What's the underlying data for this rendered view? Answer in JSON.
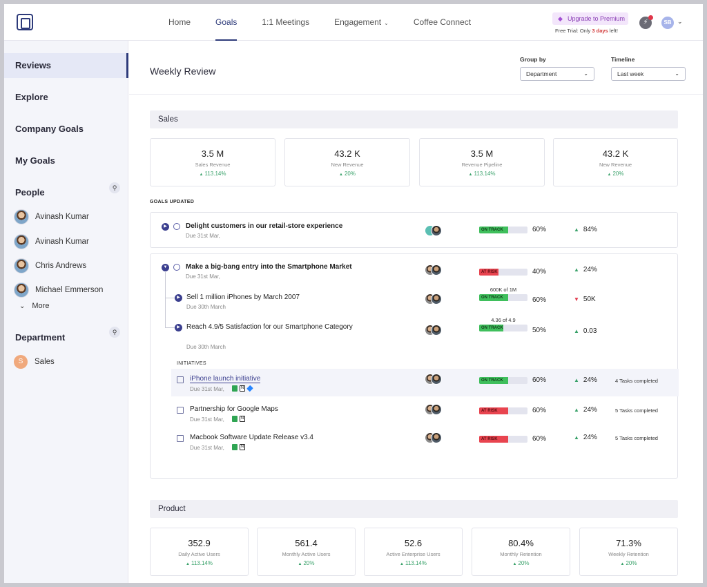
{
  "nav": {
    "links": [
      "Home",
      "Goals",
      "1:1 Meetings",
      "Engagement",
      "Coffee Connect"
    ],
    "active": "Goals",
    "upgrade_label": "Upgrade to Premium",
    "trial_prefix": "Free Trial: Only",
    "trial_days": "3 days",
    "trial_suffix": "left!",
    "user_initials": "SB"
  },
  "sidebar": {
    "items": [
      "Reviews",
      "Explore",
      "Company Goals",
      "My Goals"
    ],
    "people_heading": "People",
    "people": [
      "Avinash Kumar",
      "Avinash Kumar",
      "Chris Andrews",
      "Michael Emmerson"
    ],
    "more_label": "More",
    "department_heading": "Department",
    "departments": [
      {
        "initial": "S",
        "name": "Sales"
      }
    ]
  },
  "header": {
    "title": "Weekly Review",
    "group_by_label": "Group by",
    "group_by_value": "Department",
    "timeline_label": "Timeline",
    "timeline_value": "Last week"
  },
  "sales": {
    "title": "Sales",
    "kpis": [
      {
        "value": "3.5 M",
        "label": "Sales Revenue",
        "change": "113.14%"
      },
      {
        "value": "43.2 K",
        "label": "New Revenue",
        "change": "20%"
      },
      {
        "value": "3.5 M",
        "label": "Revenue Pipeline",
        "change": "113.14%"
      },
      {
        "value": "43.2 K",
        "label": "New Revenue",
        "change": "20%"
      }
    ],
    "goals_updated_label": "GOALS UPDATED",
    "goals": [
      {
        "title": "Delight customers in our retail-store experience",
        "due": "Due 31st Mar,",
        "status": "ON TRACK",
        "progress": 60,
        "progress_label": "60%",
        "trend": "84%"
      },
      {
        "title": "Make a big-bang entry into the Smartphone Market",
        "due": "Due 31st Mar,",
        "status": "AT RISK",
        "progress": 40,
        "progress_label": "40%",
        "trend": "24%"
      }
    ],
    "sub_goals": [
      {
        "title": "Sell 1 million iPhones by March 2007",
        "due": "Due 30th March",
        "note": "600K of 1M",
        "status": "ON TRACK",
        "progress": 60,
        "progress_label": "60%",
        "trend": "50K"
      },
      {
        "title": "Reach 4.9/5 Satisfaction for our Smartphone Category",
        "due": "Due 30th March",
        "note": "4.36 of 4.9",
        "status": "ON TRACK",
        "progress": 50,
        "progress_label": "50%",
        "trend": "0.03"
      }
    ],
    "initiatives_label": "INITIATIVES",
    "initiatives": [
      {
        "title": "iPhone launch initiative",
        "due": "Due 31st Mar,",
        "status": "ON TRACK",
        "progress": 60,
        "progress_label": "60%",
        "trend": "24%",
        "tasks": "4 Tasks completed"
      },
      {
        "title": "Partnership for Google Maps",
        "due": "Due 31st Mar,",
        "status": "AT RISK",
        "progress": 60,
        "progress_label": "60%",
        "trend": "24%",
        "tasks": "5 Tasks completed"
      },
      {
        "title": "Macbook Software Update Release v3.4",
        "due": "Due 31st Mar,",
        "status": "AT RISK",
        "progress": 60,
        "progress_label": "60%",
        "trend": "24%",
        "tasks": "5 Tasks completed"
      }
    ]
  },
  "product": {
    "title": "Product",
    "kpis": [
      {
        "value": "352.9",
        "label": "Daily Active Users",
        "change": "113.14%"
      },
      {
        "value": "561.4",
        "label": "Monthly Active Users",
        "change": "20%"
      },
      {
        "value": "52.6",
        "label": "Active Enterprise Users",
        "change": "113.14%"
      },
      {
        "value": "80.4%",
        "label": "Monthly Retention",
        "change": "20%"
      },
      {
        "value": "71.3%",
        "label": "Weekly Retention",
        "change": "20%"
      }
    ]
  },
  "colors": {
    "brand": "#2d3a7a",
    "on_track": "#3fbf5c",
    "at_risk": "#e8444f",
    "trend_up": "#38a169",
    "trend_down": "#e0364a"
  }
}
